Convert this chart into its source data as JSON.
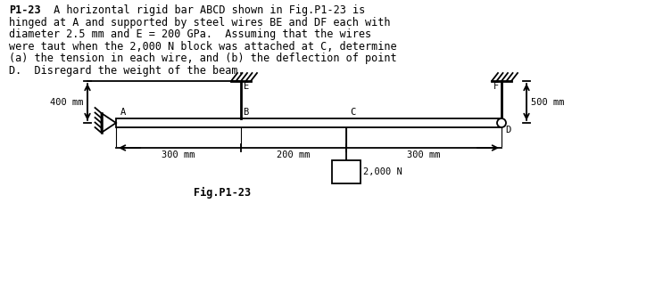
{
  "title_bold": "P1-23",
  "title_rest_line1": " A horizontal rigid bar ABCD shown in Fig.P1-23 is",
  "title_lines": [
    "hinged at A and supported by steel wires BE and DF each with",
    "diameter 2.5 mm and E = 200 GPa.  Assuming that the wires",
    "were taut when the 2,000 N block was attached at C, determine",
    "(a) the tension in each wire, and (b) the deflection of point",
    "D.  Disregard the weight of the beam."
  ],
  "fig_label": "Fig.P1-23",
  "load_label": "2,000 N",
  "label_A": "A",
  "label_B": "B",
  "label_C": "C",
  "label_D": "D",
  "label_E": "E",
  "label_F": "F",
  "dim_400": "400 mm",
  "dim_500": "500 mm",
  "dim_300a": "300 mm",
  "dim_200": "200 mm",
  "dim_300b": "300 mm",
  "bg_color": "#ffffff",
  "line_color": "#000000",
  "text_fontsize": 8.5,
  "diagram_fontsize": 7.5
}
